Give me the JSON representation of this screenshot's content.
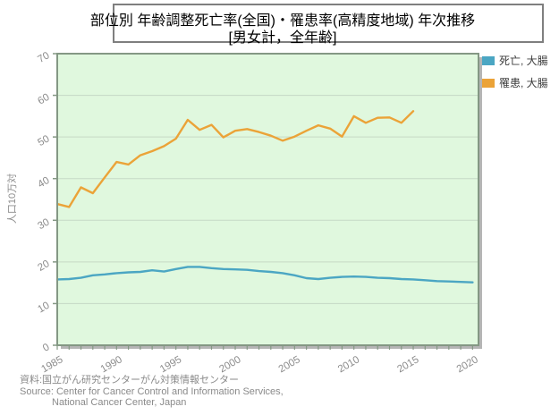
{
  "title": {
    "line1": "部位別 年齢調整死亡率(全国)・罹患率(高精度地域) 年次推移",
    "line2": "[男女計，全年齢]"
  },
  "legend": {
    "items": [
      {
        "label": "死亡, 大腸",
        "color": "#4BA6C3"
      },
      {
        "label": "罹患, 大腸",
        "color": "#EBA338"
      }
    ]
  },
  "source": {
    "line1": "資料:国立がん研究センターがん対策情報センター",
    "line2": "Source: Center for Cancer Control and Information Services,",
    "line3": "National Cancer Center, Japan"
  },
  "chart_data": {
    "type": "line",
    "title": "部位別 年齢調整死亡率(全国)・罹患率(高精度地域) 年次推移 [男女計，全年齢]",
    "xlabel": "",
    "ylabel": "人口10万対",
    "xlim": [
      1985,
      2020.5
    ],
    "ylim": [
      0,
      70
    ],
    "xticks": [
      1985,
      1990,
      1995,
      2000,
      2005,
      2010,
      2015,
      2020
    ],
    "yticks": [
      0,
      10,
      20,
      30,
      40,
      50,
      60,
      70
    ],
    "minor_xtick_step": 1,
    "grid": "horizontal",
    "legend_position": "top-right-outside",
    "plot_bg": "#E0F8DE",
    "plot_border_color": "#849884",
    "grid_color": "#C5D9C5",
    "shadow_color": "#B5B5B5",
    "tick_label_color": "#8C8C8C",
    "series": [
      {
        "name": "死亡, 大腸",
        "color": "#4BA6C3",
        "x_start": 1985,
        "x_step": 1,
        "values": [
          15.8,
          15.9,
          16.2,
          16.8,
          17.0,
          17.3,
          17.5,
          17.6,
          18.0,
          17.7,
          18.3,
          18.8,
          18.8,
          18.5,
          18.3,
          18.2,
          18.1,
          17.8,
          17.6,
          17.3,
          16.8,
          16.1,
          15.9,
          16.2,
          16.4,
          16.5,
          16.4,
          16.2,
          16.1,
          15.9,
          15.8,
          15.6,
          15.4,
          15.3,
          15.2,
          15.1
        ]
      },
      {
        "name": "罹患, 大腸",
        "color": "#EBA338",
        "x_start": 1985,
        "x_step": 1,
        "values": [
          33.9,
          33.2,
          37.9,
          36.5,
          40.3,
          44.0,
          43.4,
          45.6,
          46.6,
          47.8,
          49.6,
          54.1,
          51.7,
          52.9,
          49.9,
          51.5,
          51.9,
          51.2,
          50.3,
          49.1,
          50.1,
          51.5,
          52.8,
          52.0,
          50.1,
          55.0,
          53.4,
          54.6,
          54.7,
          53.4,
          56.2
        ]
      }
    ]
  }
}
